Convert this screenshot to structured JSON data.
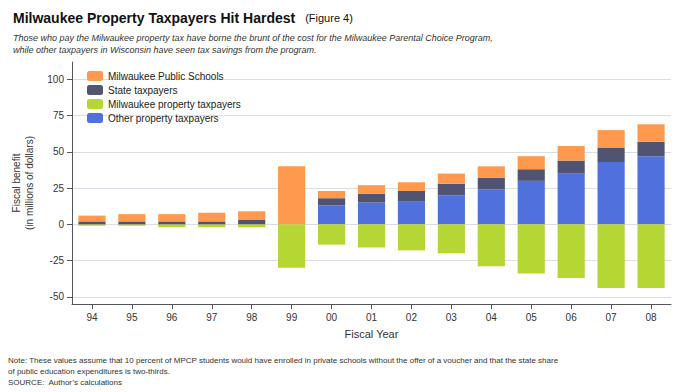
{
  "chart_data": {
    "type": "bar",
    "title": "Milwaukee Property Taxpayers Hit Hardest",
    "subtitle": "Those who pay the Milwaukee property tax have borne the brunt of the cost for the Milwaukee Parental Choice Program,\nwhile other taxpayers in Wisconsin have seen tax savings from the program.",
    "annotations": [
      "(Figure 4)",
      "Note: These values assume that 10 percent of MPCP students would have enrolled in private schools without the offer of a voucher and that the state share",
      "of public education expenditures is two-thirds.",
      "SOURCE:  Author’s calculations"
    ],
    "categories": [
      "94",
      "95",
      "96",
      "97",
      "98",
      "99",
      "00",
      "01",
      "02",
      "03",
      "04",
      "05",
      "06",
      "07",
      "08"
    ],
    "series": [
      {
        "name": "Milwaukee Public Schools",
        "values": [
          4,
          5,
          5,
          6,
          6,
          40,
          5,
          6,
          6,
          7,
          8,
          9,
          10,
          12,
          12
        ]
      },
      {
        "name": "State taxpayers",
        "values": [
          2,
          2,
          2,
          2,
          3,
          0,
          5,
          6,
          7,
          8,
          8,
          8,
          9,
          10,
          10
        ]
      },
      {
        "name": "Milwaukee property taxpayers",
        "values": [
          -1,
          -1,
          -2,
          -2,
          -2,
          -30,
          -14,
          -16,
          -18,
          -20,
          -29,
          -34,
          -37,
          -44,
          -44
        ]
      },
      {
        "name": "Other property taxpayers",
        "values": [
          0,
          0,
          0,
          0,
          0,
          0,
          13,
          15,
          16,
          20,
          24,
          30,
          35,
          43,
          47
        ]
      }
    ],
    "xlabel": "Fiscal Year",
    "ylabel": "Fiscal benefit\n(in millions of dollars)",
    "ylim": [
      -55,
      112
    ],
    "yticks": [
      -50,
      -25,
      0,
      25,
      50,
      75,
      100
    ],
    "stacked": true,
    "grid": true,
    "legend": "upper left"
  }
}
